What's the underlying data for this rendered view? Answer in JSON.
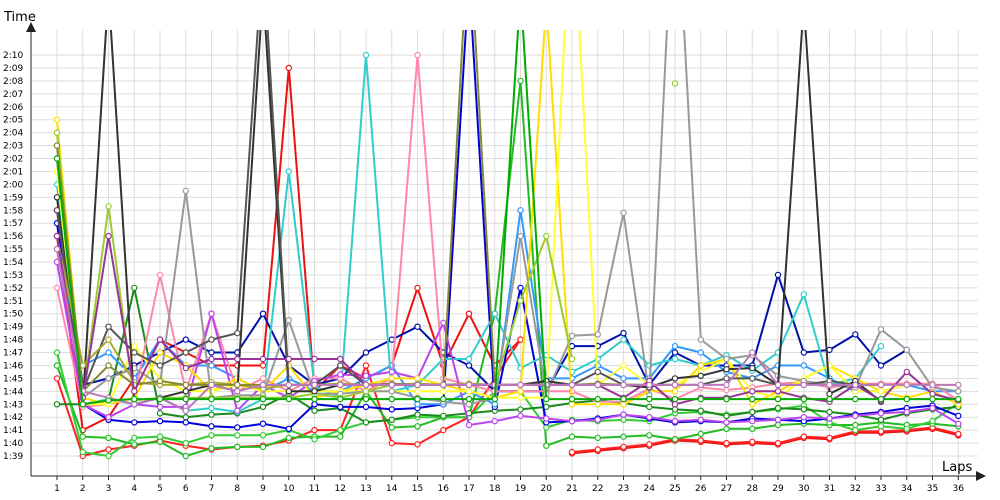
{
  "chart_data": {
    "type": "line",
    "ylabel": "Time",
    "xlabel": "Laps",
    "x": [
      1,
      2,
      3,
      4,
      5,
      6,
      7,
      8,
      9,
      10,
      11,
      12,
      13,
      14,
      15,
      16,
      17,
      18,
      19,
      20,
      21,
      22,
      23,
      24,
      25,
      26,
      27,
      28,
      29,
      30,
      31,
      32,
      33,
      34,
      35,
      36
    ],
    "y_ticks": [
      {
        "v": 99,
        "t": "1:39"
      },
      {
        "v": 100,
        "t": "1:40"
      },
      {
        "v": 101,
        "t": "1:41"
      },
      {
        "v": 102,
        "t": "1:42"
      },
      {
        "v": 103,
        "t": "1:43"
      },
      {
        "v": 104,
        "t": "1:44"
      },
      {
        "v": 105,
        "t": "1:45"
      },
      {
        "v": 106,
        "t": "1:46"
      },
      {
        "v": 107,
        "t": "1:47"
      },
      {
        "v": 108,
        "t": "1:48"
      },
      {
        "v": 109,
        "t": "1:49"
      },
      {
        "v": 110,
        "t": "1:50"
      },
      {
        "v": 111,
        "t": "1:51"
      },
      {
        "v": 112,
        "t": "1:52"
      },
      {
        "v": 113,
        "t": "1:53"
      },
      {
        "v": 114,
        "t": "1:54"
      },
      {
        "v": 115,
        "t": "1:55"
      },
      {
        "v": 116,
        "t": "1:56"
      },
      {
        "v": 117,
        "t": "1:57"
      },
      {
        "v": 118,
        "t": "1:58"
      },
      {
        "v": 119,
        "t": "1:59"
      },
      {
        "v": 120,
        "t": "2:00"
      },
      {
        "v": 121,
        "t": "2:01"
      },
      {
        "v": 122,
        "t": "2:02"
      },
      {
        "v": 123,
        "t": "2:03"
      },
      {
        "v": 124,
        "t": "2:04"
      },
      {
        "v": 125,
        "t": "2:05"
      },
      {
        "v": 126,
        "t": "2:06"
      },
      {
        "v": 127,
        "t": "2:07"
      },
      {
        "v": 128,
        "t": "2:08"
      },
      {
        "v": 129,
        "t": "2:09"
      },
      {
        "v": 130,
        "t": "2:10"
      }
    ],
    "ylim": [
      98,
      133
    ],
    "grid": true,
    "series": [
      {
        "color": "#ee1111",
        "values": [
          116,
          101,
          102,
          105,
          108,
          107,
          106,
          106,
          106,
          129,
          104,
          106,
          105,
          106,
          112,
          106,
          110,
          106,
          108,
          null,
          99.2,
          99.4,
          99.6,
          99.8,
          100.2,
          100.1,
          99.9,
          100.0,
          99.9,
          100.4,
          100.3,
          100.8,
          100.8,
          100.9,
          101.1,
          100.6
        ]
      },
      {
        "color": "#ff2222",
        "values": [
          105,
          99.0,
          99.5,
          99.8,
          100.2,
          99.8,
          99.5,
          99.7,
          99.8,
          100.2,
          101,
          101,
          106,
          100.0,
          99.9,
          101,
          102,
          105,
          108,
          null,
          99.3,
          99.5,
          99.7,
          99.9,
          100.3,
          100.2,
          100.0,
          100.1,
          100.0,
          100.5,
          100.4,
          100.9,
          100.9,
          101.0,
          101.2,
          100.7
        ]
      },
      {
        "color": "#22bb22",
        "values": [
          106,
          100.5,
          100.4,
          99.9,
          100.1,
          99.0,
          99.6,
          99.7,
          99.7,
          100.4,
          100.5,
          100.5,
          104,
          101.2,
          101.3,
          102,
          102,
          110,
          128,
          99.8,
          100.5,
          100.4,
          100.5,
          100.6,
          100.3,
          100.7,
          101.1,
          101.1,
          101.4,
          101.5,
          101.4,
          101.4,
          101.6,
          101.4,
          101.5,
          101.3
        ]
      },
      {
        "color": "#33cc33",
        "values": [
          107,
          99.3,
          99.0,
          100.4,
          100.5,
          100.0,
          100.6,
          100.6,
          100.6,
          101.0,
          100.3,
          101.0,
          101.6,
          101.8,
          102,
          102,
          102,
          104,
          104,
          101.2,
          101.8,
          101.7,
          101.8,
          101.7,
          102.3,
          102.4,
          102.2,
          102.4,
          102.6,
          102.9,
          101.6,
          101.0,
          101.3,
          101.1,
          101.7,
          103.1
        ]
      },
      {
        "color": "#1a8a1a",
        "values": [
          103,
          103.0,
          103.3,
          112,
          102.3,
          102.0,
          102.2,
          102.3,
          102.8,
          103.8,
          102.5,
          102.7,
          101.6,
          101.8,
          102.2,
          102.1,
          102.3,
          102.5,
          102.6,
          102.8,
          103.1,
          103.3,
          103.1,
          102.8,
          102.6,
          102.5,
          102.1,
          102.4,
          102.7,
          102.6,
          102.4,
          102.2,
          101.8,
          102.3,
          102.6,
          102.8
        ]
      },
      {
        "color": "#0000dd",
        "values": [
          117,
          103,
          101.8,
          101.6,
          101.7,
          101.6,
          101.3,
          101.2,
          101.5,
          101.1,
          103,
          102.8,
          102.8,
          102.6,
          102.7,
          103,
          136,
          102.8,
          112,
          101.6,
          101.7,
          101.9,
          102.2,
          101.9,
          101.6,
          101.7,
          101.6,
          101.9,
          101.8,
          101.7,
          101.9,
          102.2,
          102.4,
          102.7,
          102.9,
          102.1
        ]
      },
      {
        "color": "#0011aa",
        "values": [
          118,
          104.5,
          105,
          106,
          107,
          108,
          107,
          107,
          110,
          106,
          104.5,
          105,
          107,
          108,
          109,
          107,
          106,
          104,
          104,
          104,
          107.5,
          107.5,
          108.5,
          104.5,
          107,
          106,
          106,
          106,
          113,
          107,
          107.2,
          108.4,
          106,
          107.2,
          null,
          null
        ]
      },
      {
        "color": "#3399ff",
        "values": [
          115,
          106,
          107,
          105,
          108,
          106,
          106,
          105,
          104,
          105,
          104,
          104,
          105,
          106,
          103,
          103,
          104,
          103,
          118,
          105,
          105,
          106,
          105,
          105,
          107.5,
          107,
          105.5,
          105,
          106,
          106,
          105,
          104,
          104,
          104.5,
          104,
          104
        ]
      },
      {
        "color": "#33cccc",
        "values": [
          120,
          103,
          103.4,
          103,
          103.5,
          102.5,
          102.7,
          102.4,
          103.4,
          121,
          104.4,
          103.5,
          130,
          104,
          104.5,
          106.5,
          106.5,
          110,
          105.8,
          106.8,
          105.5,
          106.5,
          108,
          106,
          106.5,
          106,
          106.8,
          105.6,
          107,
          111.5,
          104.5,
          105,
          107.5,
          null,
          null,
          null
        ]
      },
      {
        "color": "#ff88aa",
        "values": [
          112,
          102.8,
          103,
          103.5,
          113,
          104,
          110,
          104,
          105,
          104,
          105,
          105,
          104,
          105,
          130,
          105,
          104.5,
          104,
          104,
          104,
          104,
          103.2,
          103.2,
          104.2,
          103.4,
          104.3,
          104.1,
          104.3,
          104.6,
          104.7,
          104.3,
          104.6,
          104.6,
          104.6,
          104.6,
          103.3
        ]
      },
      {
        "color": "#bb44ee",
        "values": [
          114,
          103,
          102,
          103,
          102.8,
          102.8,
          110,
          102.5,
          104.5,
          103.5,
          104.8,
          105.3,
          105.2,
          105.5,
          105,
          109.3,
          101.4,
          101.7,
          102.1,
          101.9,
          101.7,
          101.8,
          102.2,
          102.0,
          101.7,
          101.8,
          101.6,
          101.7,
          101.8,
          102.0,
          101.9,
          102.1,
          102.3,
          102.4,
          102.7,
          101.5
        ]
      },
      {
        "color": "#ffdd00",
        "values": [
          125,
          103.5,
          103,
          103.5,
          107,
          106,
          104,
          105,
          104,
          106,
          103.5,
          104,
          104.5,
          105,
          105,
          104.5,
          104,
          103.5,
          104,
          134,
          103,
          103,
          103,
          104,
          104,
          106,
          106.5,
          103,
          104,
          105,
          106,
          105,
          104,
          103.5,
          104,
          103
        ]
      },
      {
        "color": "#ffff33",
        "values": [
          121,
          103,
          103,
          107.5,
          105,
          104,
          104,
          104.5,
          104,
          104,
          104,
          104,
          104,
          104,
          104,
          104,
          104,
          103.5,
          103.5,
          103.5,
          143,
          104.5,
          106,
          104.5,
          104.5,
          105.5,
          106.5,
          104,
          103.5,
          105,
          106,
          104,
          104,
          104.5,
          104.5,
          104.5
        ]
      },
      {
        "color": "#999999",
        "values": [
          123,
          103.5,
          105,
          105.8,
          104.5,
          119.5,
          103.5,
          103.7,
          103.7,
          109.5,
          103.8,
          103.8,
          104,
          104,
          103.5,
          103.2,
          103,
          103.5,
          116,
          103.8,
          108.3,
          108.4,
          117.8,
          103.7,
          145,
          108,
          106.5,
          106.8,
          105.2,
          104.8,
          104.5,
          104.3,
          108.8,
          107.2,
          104.3,
          104.0
        ]
      },
      {
        "color": "#99cc33",
        "values": [
          124,
          103.5,
          118.3,
          103.3,
          103.5,
          103.5,
          103.5,
          103.5,
          103.5,
          103.5,
          103.8,
          103.5,
          104,
          104.5,
          104.5,
          104.5,
          104.5,
          104.5,
          111,
          116,
          106.5,
          null,
          null,
          null,
          127.8,
          null,
          null,
          null,
          null,
          null,
          null,
          null,
          null,
          null,
          null,
          null
        ]
      },
      {
        "color": "#333333",
        "values": [
          119,
          103,
          135,
          103,
          103.5,
          104,
          104.5,
          104,
          135,
          104,
          104,
          104.5,
          104.5,
          104.5,
          104.5,
          104.5,
          104.5,
          104.5,
          104.5,
          104.8,
          104.5,
          104.5,
          104.5,
          104.3,
          105.0,
          105.2,
          105.7,
          105.8,
          104.5,
          134,
          103.8,
          104.8,
          103.2,
          null,
          null,
          null
        ]
      },
      {
        "color": "#555555",
        "values": [
          118,
          104,
          109,
          107,
          106,
          107,
          108,
          108.5,
          138,
          104.5,
          104.5,
          106,
          104.5,
          104.5,
          104.5,
          104.5,
          104.5,
          104.5,
          104.5,
          104.5,
          104.5,
          105.5,
          104.5,
          104.5,
          104.5,
          104.5,
          105,
          105,
          104.5,
          104.5,
          104.8,
          104.5,
          104.5,
          null,
          null,
          null
        ]
      },
      {
        "color": "#aaaa33",
        "values": [
          116,
          106,
          108,
          104.7,
          104.5,
          104.5,
          104.7,
          104.5,
          104.2,
          104.5,
          104.5,
          104.6,
          104.5,
          104.5,
          104.6,
          104.5,
          104.6,
          104.5,
          104.5,
          104.5,
          104.5,
          104.5,
          104.5,
          104.5,
          null,
          null,
          null,
          null,
          null,
          null,
          null,
          null,
          null,
          null,
          null,
          null
        ]
      },
      {
        "color": "#888833",
        "values": [
          123,
          104,
          106,
          104.5,
          104.8,
          104.5,
          104.5,
          104.5,
          104.5,
          104.5,
          104.5,
          104.5,
          104.5,
          104.6,
          104.5,
          104.5,
          140,
          104.5,
          104.5,
          104.5,
          104.5,
          104.6,
          104.5,
          104.5,
          null,
          null,
          null,
          null,
          null,
          null,
          null,
          null,
          null,
          null,
          null,
          null
        ]
      },
      {
        "color": "#993399",
        "values": [
          116,
          103.5,
          116,
          104,
          108,
          105.8,
          106.5,
          106.5,
          106.5,
          106.5,
          106.5,
          106.5,
          104.5,
          104.5,
          104.5,
          104.5,
          104.5,
          104.5,
          104.5,
          104.5,
          104.5,
          104.5,
          103.5,
          104.8,
          103,
          103.5,
          103.5,
          104,
          104,
          103.5,
          103.2,
          104.5,
          103.3,
          105.5,
          103.8,
          103.3
        ]
      },
      {
        "color": "#bb77bb",
        "values": [
          115,
          104,
          103.5,
          103,
          103.5,
          102.5,
          104.5,
          104,
          104.5,
          104.5,
          104.5,
          104.5,
          104.5,
          104.5,
          104.5,
          104.5,
          104.5,
          104.5,
          104.5,
          104.5,
          104.5,
          104.5,
          104.5,
          104.5,
          104.5,
          104.5,
          104.5,
          107,
          104.5,
          104.5,
          104.5,
          104.5,
          104.5,
          104.5,
          104.5,
          104.5
        ]
      },
      {
        "color": "#00aa00",
        "values": [
          122,
          103,
          103.3,
          103.4,
          103.4,
          103.4,
          103.4,
          103.4,
          103.4,
          103.4,
          103.4,
          103.4,
          103.4,
          103.4,
          103.4,
          103.4,
          103.4,
          103.4,
          135,
          103.4,
          103.4,
          103.4,
          103.4,
          103.4,
          103.4,
          103.4,
          103.4,
          103.4,
          103.4,
          103.4,
          103.4,
          103.4,
          103.4,
          103.4,
          103.4,
          103.4
        ]
      }
    ]
  }
}
